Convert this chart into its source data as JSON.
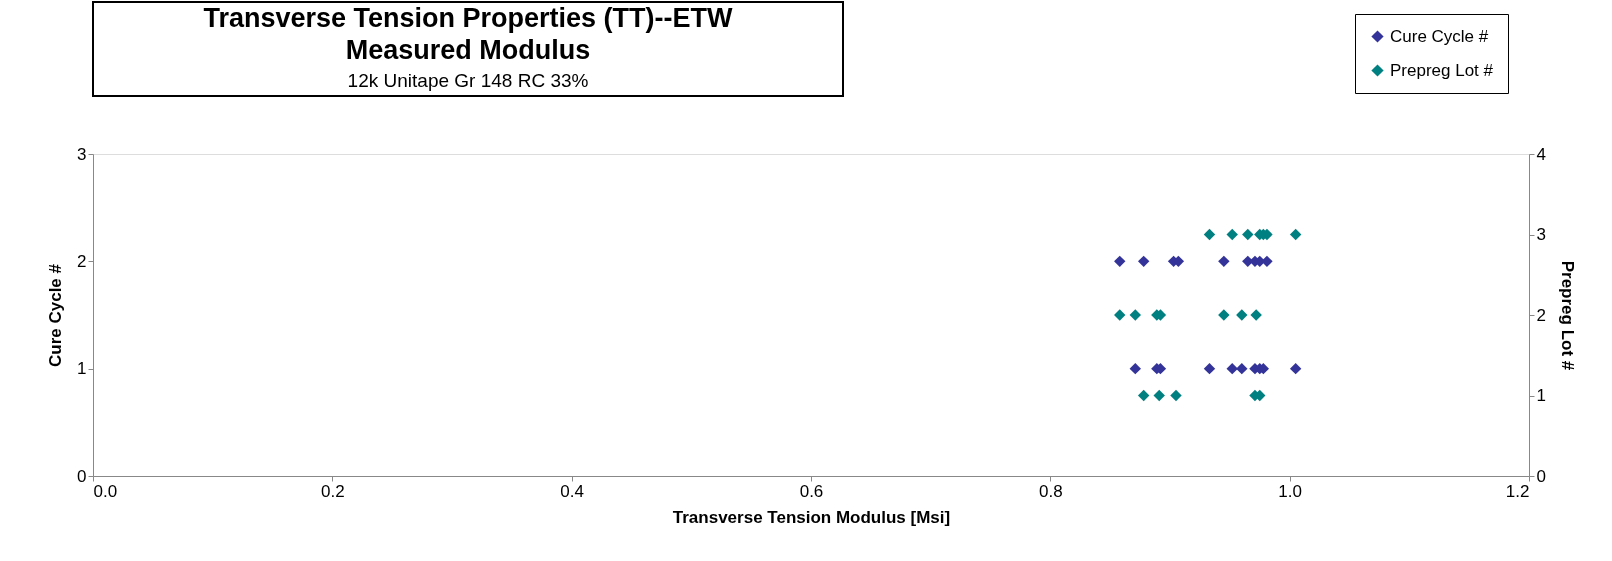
{
  "chart_data": {
    "type": "scatter",
    "title": "Transverse Tension Properties (TT)--ETW\nMeasured Modulus",
    "subtitle": "12k Unitape Gr 148 RC 33%",
    "xlabel": "Transverse Tension Modulus [Msi]",
    "ylabel": "Cure Cycle #",
    "y2label": "Prepreg Lot #",
    "marker": "diamond",
    "legend": "top right",
    "grid": false,
    "xlim": [
      0,
      1.2
    ],
    "xticks": [
      {
        "value": 0,
        "label": "0.0"
      },
      {
        "value": 0.2,
        "label": "0.2"
      },
      {
        "value": 0.4,
        "label": "0.4"
      },
      {
        "value": 0.6,
        "label": "0.6"
      },
      {
        "value": 0.8,
        "label": "0.8"
      },
      {
        "value": 1.0,
        "label": "1.0"
      },
      {
        "value": 1.2,
        "label": "1.2"
      }
    ],
    "ylim": [
      0,
      3
    ],
    "yticks": [
      0,
      1,
      2,
      3
    ],
    "y2lim": [
      0,
      4
    ],
    "y2ticks": [
      0,
      1,
      2,
      3,
      4
    ],
    "series": [
      {
        "name": "Cure Cycle #",
        "color": "#333399",
        "x": [
          0.858,
          0.878,
          0.903,
          0.907,
          0.945,
          0.965,
          0.971,
          0.975,
          0.981,
          0.871,
          0.889,
          0.892,
          0.933,
          0.952,
          0.96,
          0.971,
          0.975,
          0.978,
          1.005
        ],
        "values": [
          2,
          2,
          2,
          2,
          2,
          2,
          2,
          2,
          2,
          1,
          1,
          1,
          1,
          1,
          1,
          1,
          1,
          1,
          1
        ]
      },
      {
        "name": "Prepreg Lot #",
        "color": "#008080",
        "axis": "y2",
        "x": [
          0.933,
          0.952,
          0.965,
          0.975,
          0.978,
          0.981,
          1.005,
          0.858,
          0.871,
          0.889,
          0.892,
          0.945,
          0.96,
          0.972,
          0.878,
          0.891,
          0.905,
          0.971,
          0.975
        ],
        "values": [
          3,
          3,
          3,
          3,
          3,
          3,
          3,
          2,
          2,
          2,
          2,
          2,
          2,
          2,
          1,
          1,
          1,
          1,
          1
        ]
      }
    ]
  }
}
